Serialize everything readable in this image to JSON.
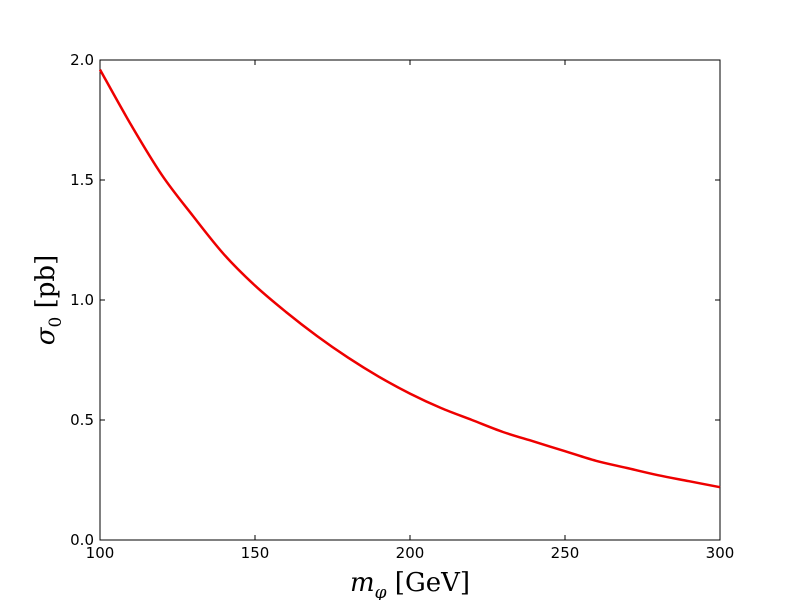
{
  "chart_data": {
    "type": "line",
    "xlabel": "m_φ [GeV]",
    "ylabel": "σ_0 [pb]",
    "xlim": [
      100,
      300
    ],
    "ylim": [
      0.0,
      2.0
    ],
    "x_ticks": [
      "100",
      "150",
      "200",
      "250",
      "300"
    ],
    "y_ticks": [
      "0.0",
      "0.5",
      "1.0",
      "1.5",
      "2.0"
    ],
    "grid": false,
    "series": [
      {
        "color": "#ee0000",
        "x": [
          100,
          110,
          120,
          130,
          140,
          150,
          160,
          170,
          180,
          190,
          200,
          210,
          220,
          230,
          240,
          250,
          260,
          270,
          280,
          290,
          300
        ],
        "y": [
          1.96,
          1.73,
          1.52,
          1.35,
          1.19,
          1.06,
          0.95,
          0.85,
          0.76,
          0.68,
          0.61,
          0.55,
          0.5,
          0.45,
          0.41,
          0.37,
          0.33,
          0.3,
          0.27,
          0.245,
          0.22
        ]
      }
    ]
  }
}
